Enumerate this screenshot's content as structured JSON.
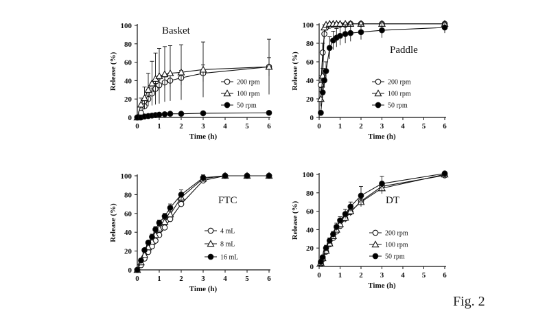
{
  "figure_label": "Fig. 2",
  "colors": {
    "ink": "#111111",
    "open_fill": "#ffffff",
    "filled": "#000000"
  },
  "chart_data": [
    {
      "type": "line",
      "title": "Basket",
      "xlabel": "Time (h)",
      "ylabel": "Release (%)",
      "xlim": [
        0,
        6
      ],
      "ylim": [
        0,
        100
      ],
      "xticks": [
        0,
        1,
        2,
        3,
        4,
        5,
        6
      ],
      "yticks": [
        0,
        20,
        40,
        60,
        80,
        100
      ],
      "series": [
        {
          "name": "200 rpm",
          "marker": "circle-open",
          "x": [
            0,
            0.17,
            0.33,
            0.5,
            0.67,
            0.83,
            1,
            1.25,
            1.5,
            2,
            3,
            6
          ],
          "y": [
            0,
            5,
            12,
            20,
            26,
            31,
            35,
            38,
            40,
            43,
            48,
            55
          ],
          "err": [
            0,
            2,
            3,
            4,
            5,
            6,
            6,
            6,
            7,
            8,
            9,
            10
          ]
        },
        {
          "name": "100 rpm",
          "marker": "triangle-open",
          "x": [
            0,
            0.17,
            0.33,
            0.5,
            0.67,
            0.83,
            1,
            1.25,
            1.5,
            2,
            3,
            6
          ],
          "y": [
            0,
            14,
            21,
            30,
            37,
            42,
            45,
            47,
            48,
            49,
            52,
            55
          ],
          "err": [
            0,
            7,
            12,
            18,
            24,
            28,
            30,
            30,
            30,
            30,
            30,
            30
          ]
        },
        {
          "name": "50 rpm",
          "marker": "circle-filled",
          "x": [
            0,
            0.17,
            0.33,
            0.5,
            0.67,
            0.83,
            1,
            1.25,
            1.5,
            2,
            3,
            6
          ],
          "y": [
            0,
            0,
            1,
            1.5,
            2,
            2.5,
            3,
            3.5,
            4,
            4,
            4.5,
            5
          ],
          "err": [
            0,
            0,
            0,
            0,
            0,
            0,
            0,
            0,
            0,
            0,
            0,
            0
          ]
        }
      ]
    },
    {
      "type": "line",
      "title": "Paddle",
      "xlabel": "Time (h)",
      "ylabel": "Release (%)",
      "xlim": [
        0,
        6
      ],
      "ylim": [
        0,
        100
      ],
      "xticks": [
        0,
        1,
        2,
        3,
        4,
        5,
        6
      ],
      "yticks": [
        0,
        20,
        40,
        60,
        80,
        100
      ],
      "series": [
        {
          "name": "200 rpm",
          "marker": "circle-open",
          "x": [
            0.08,
            0.17,
            0.25,
            0.33,
            0.5,
            0.67,
            0.83,
            1,
            1.25,
            1.5,
            2,
            3,
            6
          ],
          "y": [
            35,
            70,
            90,
            97,
            99,
            100,
            100,
            100,
            100,
            101,
            101,
            101,
            101
          ],
          "err": [
            10,
            10,
            5,
            3,
            2,
            1,
            1,
            1,
            1,
            1,
            1,
            1,
            1
          ]
        },
        {
          "name": "100 rpm",
          "marker": "triangle-open",
          "x": [
            0.08,
            0.17,
            0.25,
            0.33,
            0.5,
            0.67,
            0.83,
            1,
            1.25,
            1.5,
            2,
            3,
            6
          ],
          "y": [
            20,
            45,
            97,
            100,
            101,
            101,
            101,
            101,
            101,
            101,
            101,
            101,
            101
          ],
          "err": [
            8,
            8,
            3,
            1,
            1,
            1,
            1,
            1,
            1,
            1,
            1,
            1,
            1
          ]
        },
        {
          "name": "50 rpm",
          "marker": "circle-filled",
          "x": [
            0.08,
            0.17,
            0.25,
            0.33,
            0.5,
            0.67,
            0.83,
            1,
            1.25,
            1.5,
            2,
            3,
            6
          ],
          "y": [
            5,
            27,
            40,
            50,
            75,
            83,
            86,
            88,
            90,
            91,
            92,
            94,
            97
          ],
          "err": [
            2,
            6,
            8,
            10,
            12,
            10,
            10,
            10,
            10,
            9,
            8,
            8,
            6
          ]
        }
      ]
    },
    {
      "type": "line",
      "title": "FTC",
      "xlabel": "Time (h)",
      "ylabel": "Release (%)",
      "xlim": [
        0,
        6
      ],
      "ylim": [
        0,
        100
      ],
      "xticks": [
        0,
        1,
        2,
        3,
        4,
        5,
        6
      ],
      "yticks": [
        0,
        20,
        40,
        60,
        80,
        100
      ],
      "series": [
        {
          "name": "4 mL",
          "marker": "circle-open",
          "x": [
            0,
            0.17,
            0.33,
            0.5,
            0.67,
            0.83,
            1,
            1.25,
            1.5,
            2,
            3,
            4,
            5,
            6
          ],
          "y": [
            0,
            5,
            12,
            19,
            25,
            31,
            37,
            45,
            54,
            70,
            95,
            100,
            100,
            100
          ],
          "err": [
            0,
            2,
            2,
            2,
            2,
            3,
            3,
            3,
            3,
            3,
            3,
            2,
            2,
            2
          ]
        },
        {
          "name": "8 mL",
          "marker": "triangle-open",
          "x": [
            0,
            0.17,
            0.33,
            0.5,
            0.67,
            0.83,
            1,
            1.25,
            1.5,
            2,
            3,
            4,
            5,
            6
          ],
          "y": [
            0,
            8,
            16,
            24,
            30,
            37,
            44,
            51,
            59,
            77,
            97,
            100,
            100,
            100
          ],
          "err": [
            0,
            2,
            2,
            2,
            2,
            3,
            3,
            3,
            3,
            4,
            3,
            2,
            2,
            2
          ]
        },
        {
          "name": "16 mL",
          "marker": "circle-filled",
          "x": [
            0,
            0.17,
            0.33,
            0.5,
            0.67,
            0.83,
            1,
            1.25,
            1.5,
            2,
            3,
            4,
            5,
            6
          ],
          "y": [
            0,
            10,
            21,
            29,
            35,
            43,
            50,
            57,
            66,
            80,
            98,
            100,
            100,
            100
          ],
          "err": [
            0,
            2,
            2,
            2,
            3,
            3,
            3,
            3,
            4,
            5,
            3,
            2,
            2,
            2
          ]
        }
      ]
    },
    {
      "type": "line",
      "title": "DT",
      "xlabel": "Time (h)",
      "ylabel": "Release (%)",
      "xlim": [
        0,
        6
      ],
      "ylim": [
        0,
        100
      ],
      "xticks": [
        0,
        1,
        2,
        3,
        4,
        5,
        6
      ],
      "yticks": [
        0,
        20,
        40,
        60,
        80,
        100
      ],
      "series": [
        {
          "name": "200 rpm",
          "marker": "circle-open",
          "x": [
            0.08,
            0.17,
            0.33,
            0.5,
            0.67,
            0.83,
            1,
            1.25,
            1.5,
            2,
            3,
            6
          ],
          "y": [
            3,
            8,
            16,
            24,
            31,
            38,
            44,
            52,
            59,
            71,
            87,
            99
          ],
          "err": [
            1,
            2,
            2,
            2,
            3,
            3,
            3,
            4,
            4,
            5,
            5,
            2
          ]
        },
        {
          "name": "100 rpm",
          "marker": "triangle-open",
          "x": [
            0.08,
            0.17,
            0.33,
            0.5,
            0.67,
            0.83,
            1,
            1.25,
            1.5,
            2,
            3,
            6
          ],
          "y": [
            4,
            9,
            17,
            25,
            33,
            40,
            46,
            53,
            60,
            70,
            85,
            100
          ],
          "err": [
            1,
            2,
            2,
            3,
            3,
            3,
            4,
            4,
            4,
            5,
            6,
            2
          ]
        },
        {
          "name": "50 rpm",
          "marker": "circle-filled",
          "x": [
            0.08,
            0.17,
            0.33,
            0.5,
            0.67,
            0.83,
            1,
            1.25,
            1.5,
            2,
            3,
            6
          ],
          "y": [
            5,
            10,
            20,
            28,
            35,
            43,
            50,
            57,
            65,
            77,
            90,
            101
          ],
          "err": [
            1,
            2,
            3,
            3,
            3,
            4,
            4,
            5,
            5,
            10,
            8,
            2
          ]
        }
      ]
    }
  ]
}
